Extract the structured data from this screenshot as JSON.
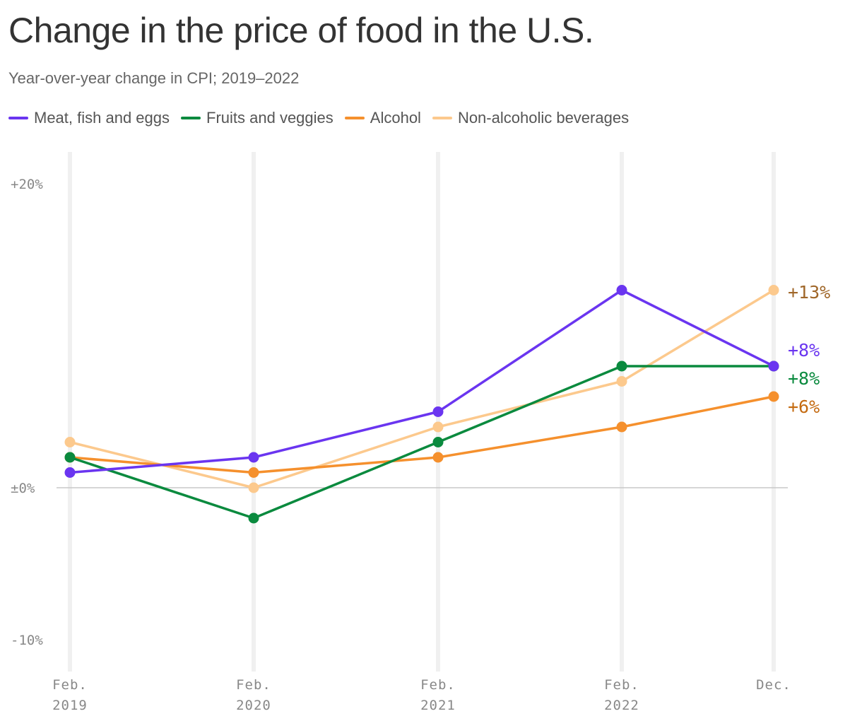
{
  "title": "Change in the price of food in the U.S.",
  "subtitle": "Year-over-year change in CPI; 2019–2022",
  "chart_data": {
    "type": "line",
    "categories": [
      {
        "line1": "Feb.",
        "line2": "2019"
      },
      {
        "line1": "Feb.",
        "line2": "2020"
      },
      {
        "line1": "Feb.",
        "line2": "2021"
      },
      {
        "line1": "Feb.",
        "line2": "2022"
      },
      {
        "line1": "Dec.",
        "line2": ""
      }
    ],
    "y_ticks": [
      {
        "value": 20,
        "label": "+20%"
      },
      {
        "value": 0,
        "label": "±0%"
      },
      {
        "value": -10,
        "label": "-10%"
      }
    ],
    "ylim": [
      -12,
      22
    ],
    "grid": "vertical",
    "legend_position": "top",
    "series": [
      {
        "name": "Meat, fish and eggs",
        "color": "#6a35f0",
        "label_color": "#6a35f0",
        "values": [
          1,
          2,
          5,
          13,
          8
        ],
        "end_label": "+8%"
      },
      {
        "name": "Fruits and veggies",
        "color": "#0a8a3e",
        "label_color": "#0a8a3e",
        "values": [
          2,
          -2,
          3,
          8,
          8
        ],
        "end_label": "+8%"
      },
      {
        "name": "Alcohol",
        "color": "#f5902d",
        "label_color": "#c46a10",
        "values": [
          2,
          1,
          2,
          4,
          6
        ],
        "end_label": "+6%"
      },
      {
        "name": "Non-alcoholic beverages",
        "color": "#fcc98d",
        "label_color": "#a0672a",
        "values": [
          3,
          0,
          4,
          7,
          13
        ],
        "end_label": "+13%"
      }
    ]
  }
}
